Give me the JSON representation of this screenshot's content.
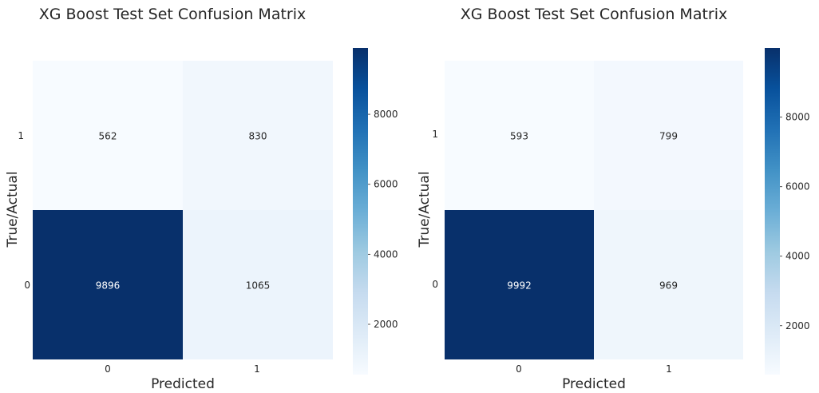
{
  "chart_data": [
    {
      "type": "heatmap",
      "title": "XG Boost Test Set Confusion Matrix",
      "xlabel": "Predicted",
      "ylabel": "True/Actual",
      "x_categories": [
        "0",
        "1"
      ],
      "y_categories": [
        "1",
        "0"
      ],
      "matrix": [
        [
          562,
          830
        ],
        [
          9896,
          1065
        ]
      ],
      "colormap": "Blues",
      "colorbar": {
        "min": 562,
        "max": 9896,
        "ticks": [
          2000,
          4000,
          6000,
          8000
        ]
      }
    },
    {
      "type": "heatmap",
      "title": "XG Boost Test Set Confusion Matrix",
      "xlabel": "Predicted",
      "ylabel": "True/Actual",
      "x_categories": [
        "0",
        "1"
      ],
      "y_categories": [
        "1",
        "0"
      ],
      "matrix": [
        [
          593,
          799
        ],
        [
          9992,
          969
        ]
      ],
      "colormap": "Blues",
      "colorbar": {
        "min": 593,
        "max": 9992,
        "ticks": [
          2000,
          4000,
          6000,
          8000
        ]
      }
    }
  ]
}
